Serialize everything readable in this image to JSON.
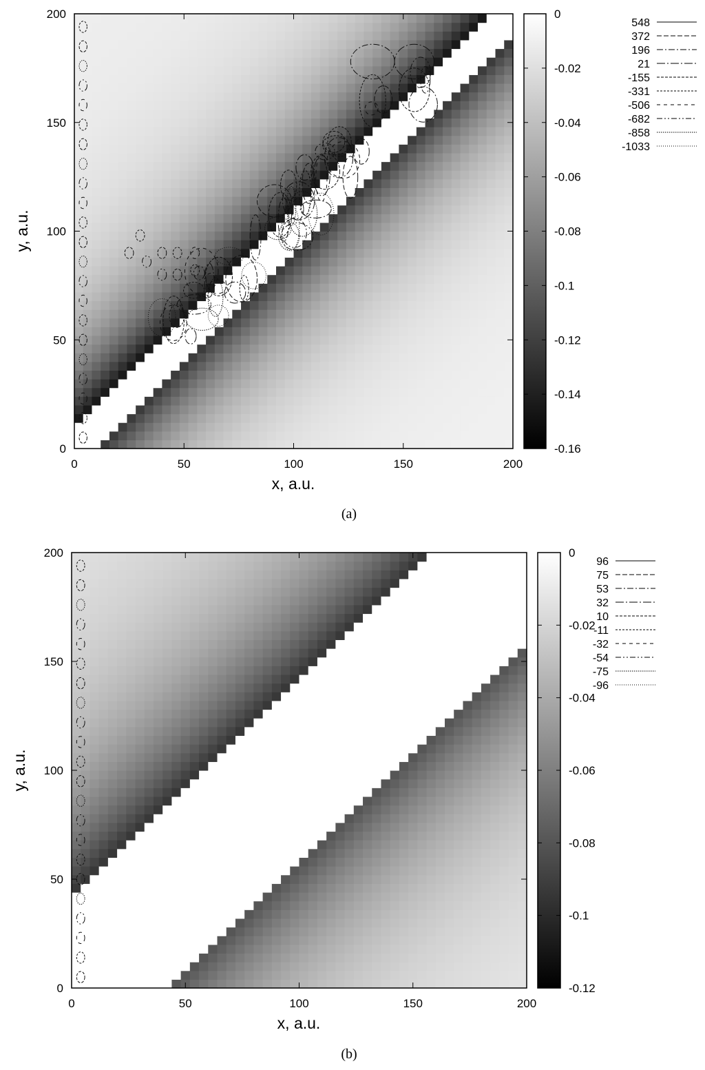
{
  "chart_data": [
    {
      "type": "heatmap",
      "caption": "(a)",
      "xlabel": "x, a.u.",
      "ylabel": "y, a.u.",
      "xlim": [
        0,
        200
      ],
      "ylim": [
        0,
        200
      ],
      "xticks": [
        0,
        50,
        100,
        150,
        200
      ],
      "yticks": [
        0,
        50,
        100,
        150,
        200
      ],
      "colorbar": {
        "range": [
          -0.16,
          0
        ],
        "ticks": [
          "0",
          "-0.02",
          "-0.04",
          "-0.06",
          "-0.08",
          "-0.1",
          "-0.12",
          "-0.14",
          "-0.16"
        ],
        "colormap": "grayscale"
      },
      "band": {
        "center_offset": 0,
        "half_width": 8,
        "shoulder_min": -0.16,
        "far_value": -0.01
      },
      "contour_levels": [
        "548",
        "372",
        "196",
        "21",
        "-155",
        "-331",
        "-506",
        "-682",
        "-858",
        "-1033"
      ]
    },
    {
      "type": "heatmap",
      "caption": "(b)",
      "xlabel": "x, a.u.",
      "ylabel": "y, a.u.",
      "xlim": [
        0,
        200
      ],
      "ylim": [
        0,
        200
      ],
      "xticks": [
        0,
        50,
        100,
        150,
        200
      ],
      "yticks": [
        0,
        50,
        100,
        150,
        200
      ],
      "colorbar": {
        "range": [
          -0.12,
          0
        ],
        "ticks": [
          "0",
          "-0.02",
          "-0.04",
          "-0.06",
          "-0.08",
          "-0.1",
          "-0.12"
        ],
        "colormap": "grayscale"
      },
      "band": {
        "center_offset": 0,
        "half_width": 40,
        "shoulder_min": -0.1,
        "far_value": -0.01
      },
      "contour_levels": [
        "96",
        "75",
        "53",
        "32",
        "10",
        "-11",
        "-32",
        "-54",
        "-75",
        "-96"
      ]
    }
  ]
}
